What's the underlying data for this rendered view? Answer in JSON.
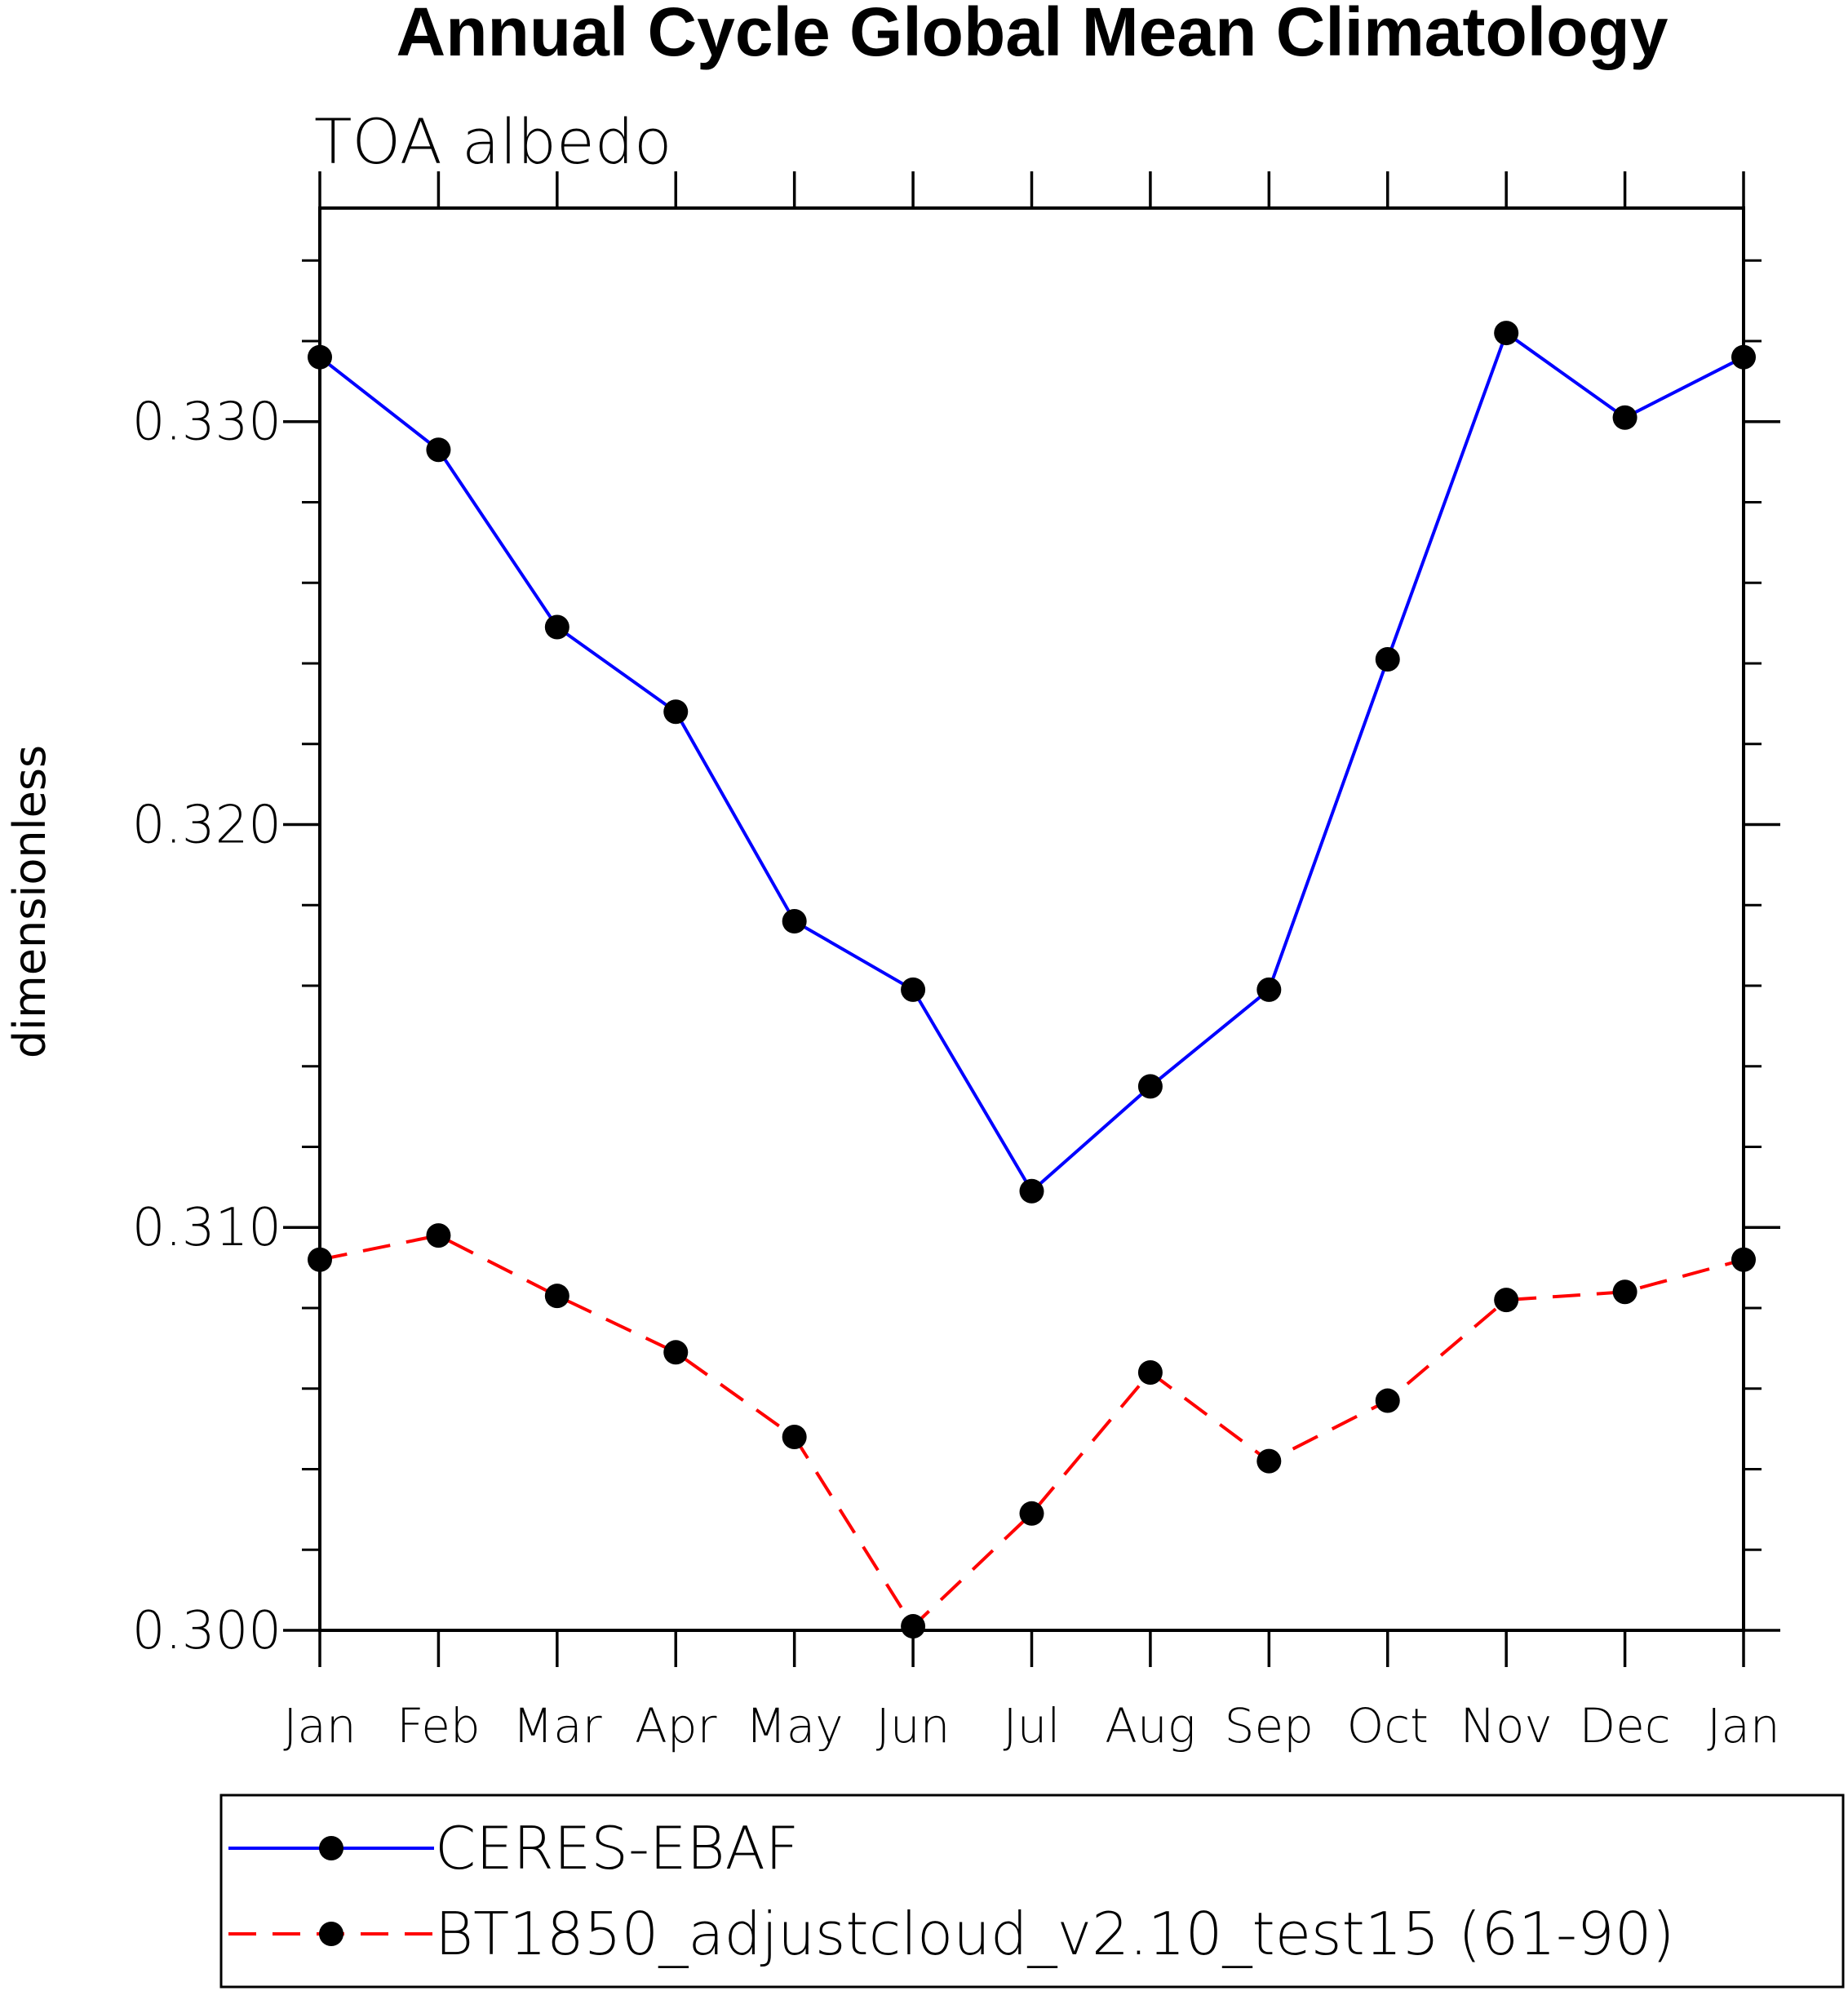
{
  "chart_data": {
    "type": "line",
    "title": "Annual Cycle Global Mean Climatology",
    "subtitle": "TOA albedo",
    "ylabel": "dimensionless",
    "xlabel": "",
    "categories": [
      "Jan",
      "Feb",
      "Mar",
      "Apr",
      "May",
      "Jun",
      "Jul",
      "Aug",
      "Sep",
      "Oct",
      "Nov",
      "Dec",
      "Jan"
    ],
    "yticks": [
      "0.300",
      "0.310",
      "0.320",
      "0.330"
    ],
    "ylim": [
      0.3,
      0.3353
    ],
    "series": [
      {
        "name": "CERES-EBAF",
        "color": "#0000ff",
        "dash": "solid",
        "values": [
          0.3316,
          0.3293,
          0.3249,
          0.3228,
          0.3176,
          0.3159,
          0.3109,
          0.3135,
          0.3159,
          0.3241,
          0.3322,
          0.3301,
          0.3316
        ]
      },
      {
        "name": "BT1850_adjustcloud_v2.10_test15 (61-90)",
        "color": "#ff0000",
        "dash": "dashed",
        "values": [
          0.3092,
          0.3098,
          0.3083,
          0.3069,
          0.3048,
          0.3001,
          0.3029,
          0.3064,
          0.3042,
          0.3057,
          0.3082,
          0.3084,
          0.3092
        ]
      }
    ],
    "grid": false,
    "legend_position": "bottom"
  }
}
